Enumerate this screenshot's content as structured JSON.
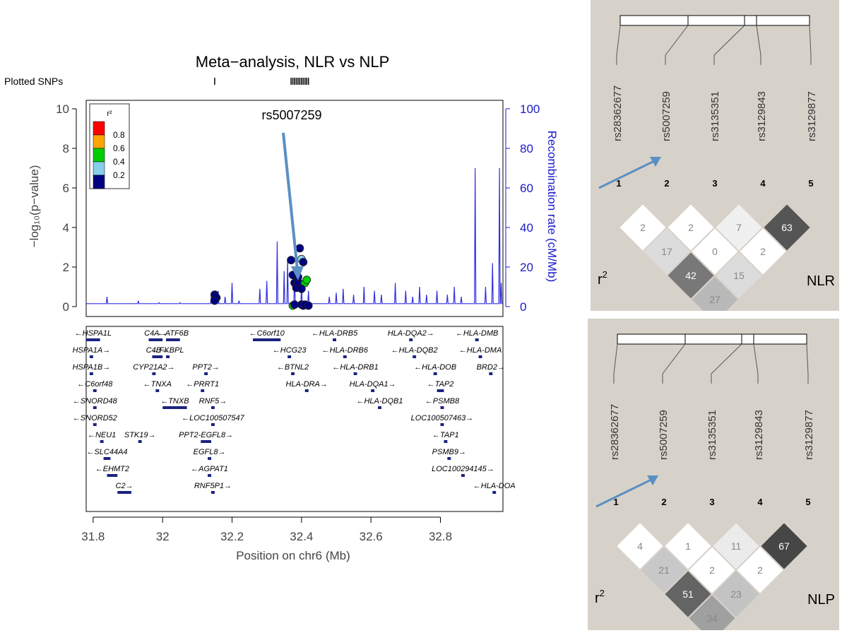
{
  "chart_data": [
    {
      "type": "scatter",
      "title": "Meta−analysis, NLR vs NLP",
      "plotted_snps_label": "Plotted SNPs",
      "xlabel": "Position on chr6 (Mb)",
      "ylabel": "−log₁₀(p−value)",
      "y2label": "Recombination rate (cM/Mb)",
      "xlim": [
        31.78,
        32.98
      ],
      "ylim": [
        0,
        10
      ],
      "y2lim": [
        0,
        100
      ],
      "x_ticks": [
        31.8,
        32.0,
        32.2,
        32.4,
        32.6,
        32.8
      ],
      "x_tick_labels": [
        "31.8",
        "32",
        "32.2",
        "32.4",
        "32.6",
        "32.8"
      ],
      "y_ticks": [
        0,
        2,
        4,
        6,
        8,
        10
      ],
      "y2_ticks": [
        0,
        20,
        40,
        60,
        80,
        100
      ],
      "legend": {
        "title": "r²",
        "placement": "top-left",
        "labels": [
          "0.8",
          "0.6",
          "0.4",
          "0.2"
        ],
        "colors": [
          "#ff0000",
          "#ffa500",
          "#00cc00",
          "#87ceeb",
          "#000080"
        ]
      },
      "annotation": "rs5007259",
      "annotation_x": 32.39,
      "annotation_y": 1.25,
      "snp_ticks": [
        32.15,
        32.37,
        32.375,
        32.38,
        32.385,
        32.39,
        32.395,
        32.4,
        32.405,
        32.41,
        32.415,
        32.42
      ],
      "points": [
        {
          "x": 32.15,
          "y": 0.6,
          "c": "#000080"
        },
        {
          "x": 32.155,
          "y": 0.45,
          "c": "#000080"
        },
        {
          "x": 32.15,
          "y": 0.3,
          "c": "#000080"
        },
        {
          "x": 32.37,
          "y": 2.35,
          "c": "#000080"
        },
        {
          "x": 32.375,
          "y": 1.6,
          "c": "#000080"
        },
        {
          "x": 32.38,
          "y": 1.2,
          "c": "#000080"
        },
        {
          "x": 32.385,
          "y": 0.95,
          "c": "#000080"
        },
        {
          "x": 32.39,
          "y": 1.25,
          "c": "#000080"
        },
        {
          "x": 32.395,
          "y": 2.95,
          "c": "#000080"
        },
        {
          "x": 32.4,
          "y": 2.4,
          "c": "#87ceeb"
        },
        {
          "x": 32.405,
          "y": 2.25,
          "c": "#000080"
        },
        {
          "x": 32.41,
          "y": 1.2,
          "c": "#00cc00"
        },
        {
          "x": 32.415,
          "y": 1.35,
          "c": "#00cc00"
        },
        {
          "x": 32.4,
          "y": 0.9,
          "c": "#000080"
        },
        {
          "x": 32.375,
          "y": 0.05,
          "c": "#00cc00"
        },
        {
          "x": 32.38,
          "y": 0.1,
          "c": "#000080"
        },
        {
          "x": 32.4,
          "y": 0.1,
          "c": "#000080"
        },
        {
          "x": 32.405,
          "y": 0.05,
          "c": "#000080"
        },
        {
          "x": 32.41,
          "y": 0.1,
          "c": "#000080"
        },
        {
          "x": 32.42,
          "y": 0.05,
          "c": "#000080"
        },
        {
          "x": 32.39,
          "y": 1.5,
          "c": "#000080"
        }
      ],
      "recomb_peaks": [
        {
          "x": 31.84,
          "y": 5
        },
        {
          "x": 31.93,
          "y": 3
        },
        {
          "x": 31.99,
          "y": 2
        },
        {
          "x": 32.05,
          "y": 2
        },
        {
          "x": 32.14,
          "y": 5
        },
        {
          "x": 32.16,
          "y": 8
        },
        {
          "x": 32.18,
          "y": 5
        },
        {
          "x": 32.2,
          "y": 12
        },
        {
          "x": 32.22,
          "y": 3
        },
        {
          "x": 32.28,
          "y": 9
        },
        {
          "x": 32.3,
          "y": 13
        },
        {
          "x": 32.33,
          "y": 33
        },
        {
          "x": 32.35,
          "y": 18
        },
        {
          "x": 32.36,
          "y": 24
        },
        {
          "x": 32.38,
          "y": 16
        },
        {
          "x": 32.4,
          "y": 10
        },
        {
          "x": 32.42,
          "y": 8
        },
        {
          "x": 32.48,
          "y": 5
        },
        {
          "x": 32.5,
          "y": 7
        },
        {
          "x": 32.52,
          "y": 9
        },
        {
          "x": 32.55,
          "y": 6
        },
        {
          "x": 32.58,
          "y": 10
        },
        {
          "x": 32.61,
          "y": 8
        },
        {
          "x": 32.63,
          "y": 6
        },
        {
          "x": 32.67,
          "y": 12
        },
        {
          "x": 32.7,
          "y": 8
        },
        {
          "x": 32.72,
          "y": 5
        },
        {
          "x": 32.74,
          "y": 10
        },
        {
          "x": 32.76,
          "y": 6
        },
        {
          "x": 32.79,
          "y": 8
        },
        {
          "x": 32.82,
          "y": 6
        },
        {
          "x": 32.84,
          "y": 10
        },
        {
          "x": 32.86,
          "y": 5
        },
        {
          "x": 32.9,
          "y": 70
        },
        {
          "x": 32.93,
          "y": 10
        },
        {
          "x": 32.95,
          "y": 22
        },
        {
          "x": 32.97,
          "y": 70
        },
        {
          "x": 32.975,
          "y": 12
        }
      ],
      "genes": [
        {
          "name": "HSPA1L",
          "x1": 31.78,
          "x2": 31.82,
          "dir": "left",
          "row": 0
        },
        {
          "name": "C4A",
          "x1": 31.96,
          "x2": 32.0,
          "dir": "right",
          "row": 0
        },
        {
          "name": "ATF6B",
          "x1": 32.01,
          "x2": 32.05,
          "dir": "left",
          "row": 0
        },
        {
          "name": "C6orf10",
          "x1": 32.26,
          "x2": 32.34,
          "dir": "left",
          "row": 0
        },
        {
          "name": "HLA-DRB5",
          "x1": 32.49,
          "x2": 32.5,
          "dir": "left",
          "row": 0
        },
        {
          "name": "HLA-DQA2",
          "x1": 32.71,
          "x2": 32.72,
          "dir": "right",
          "row": 0
        },
        {
          "name": "HLA-DMB",
          "x1": 32.9,
          "x2": 32.91,
          "dir": "left",
          "row": 0
        },
        {
          "name": "HSPA1A",
          "x1": 31.79,
          "x2": 31.8,
          "dir": "right",
          "row": 1
        },
        {
          "name": "C4B",
          "x1": 31.97,
          "x2": 32.0,
          "dir": "right",
          "row": 1
        },
        {
          "name": "FKBPL",
          "x1": 32.01,
          "x2": 32.02,
          "dir": "left",
          "row": 1
        },
        {
          "name": "HCG23",
          "x1": 32.36,
          "x2": 32.37,
          "dir": "left",
          "row": 1
        },
        {
          "name": "HLA-DRB6",
          "x1": 32.52,
          "x2": 32.53,
          "dir": "left",
          "row": 1
        },
        {
          "name": "HLA-DQB2",
          "x1": 32.72,
          "x2": 32.73,
          "dir": "left",
          "row": 1
        },
        {
          "name": "HLA-DMA",
          "x1": 32.91,
          "x2": 32.92,
          "dir": "left",
          "row": 1
        },
        {
          "name": "HSPA1B",
          "x1": 31.79,
          "x2": 31.8,
          "dir": "right",
          "row": 2
        },
        {
          "name": "CYP21A2",
          "x1": 31.97,
          "x2": 31.98,
          "dir": "right",
          "row": 2
        },
        {
          "name": "PPT2",
          "x1": 32.12,
          "x2": 32.13,
          "dir": "right",
          "row": 2
        },
        {
          "name": "BTNL2",
          "x1": 32.37,
          "x2": 32.38,
          "dir": "left",
          "row": 2
        },
        {
          "name": "HLA-DRB1",
          "x1": 32.55,
          "x2": 32.56,
          "dir": "left",
          "row": 2
        },
        {
          "name": "HLA-DOB",
          "x1": 32.78,
          "x2": 32.79,
          "dir": "left",
          "row": 2
        },
        {
          "name": "BRD2",
          "x1": 32.94,
          "x2": 32.95,
          "dir": "right",
          "row": 2
        },
        {
          "name": "C6orf48",
          "x1": 31.8,
          "x2": 31.81,
          "dir": "left",
          "row": 3
        },
        {
          "name": "TNXA",
          "x1": 31.98,
          "x2": 31.99,
          "dir": "left",
          "row": 3
        },
        {
          "name": "PRRT1",
          "x1": 32.11,
          "x2": 32.12,
          "dir": "left",
          "row": 3
        },
        {
          "name": "HLA-DRA",
          "x1": 32.41,
          "x2": 32.42,
          "dir": "right",
          "row": 3
        },
        {
          "name": "HLA-DQA1",
          "x1": 32.6,
          "x2": 32.61,
          "dir": "right",
          "row": 3
        },
        {
          "name": "TAP2",
          "x1": 32.79,
          "x2": 32.81,
          "dir": "left",
          "row": 3
        },
        {
          "name": "SNORD48",
          "x1": 31.8,
          "x2": 31.81,
          "dir": "left",
          "row": 4
        },
        {
          "name": "TNXB",
          "x1": 32.0,
          "x2": 32.07,
          "dir": "left",
          "row": 4
        },
        {
          "name": "RNF5",
          "x1": 32.14,
          "x2": 32.15,
          "dir": "right",
          "row": 4
        },
        {
          "name": "HLA-DQB1",
          "x1": 32.62,
          "x2": 32.63,
          "dir": "left",
          "row": 4
        },
        {
          "name": "PSMB8",
          "x1": 32.8,
          "x2": 32.81,
          "dir": "left",
          "row": 4
        },
        {
          "name": "SNORD52",
          "x1": 31.8,
          "x2": 31.81,
          "dir": "left",
          "row": 5
        },
        {
          "name": "LOC100507547",
          "x1": 32.14,
          "x2": 32.15,
          "dir": "left",
          "row": 5
        },
        {
          "name": "LOC100507463",
          "x1": 32.8,
          "x2": 32.81,
          "dir": "right",
          "row": 5
        },
        {
          "name": "NEU1",
          "x1": 31.82,
          "x2": 31.83,
          "dir": "left",
          "row": 6
        },
        {
          "name": "STK19",
          "x1": 31.93,
          "x2": 31.94,
          "dir": "right",
          "row": 6
        },
        {
          "name": "PPT2-EGFL8",
          "x1": 32.11,
          "x2": 32.14,
          "dir": "right",
          "row": 6
        },
        {
          "name": "TAP1",
          "x1": 32.81,
          "x2": 32.82,
          "dir": "left",
          "row": 6
        },
        {
          "name": "SLC44A4",
          "x1": 31.83,
          "x2": 31.85,
          "dir": "left",
          "row": 7
        },
        {
          "name": "EGFL8",
          "x1": 32.13,
          "x2": 32.14,
          "dir": "right",
          "row": 7
        },
        {
          "name": "PSMB9",
          "x1": 32.82,
          "x2": 32.83,
          "dir": "right",
          "row": 7
        },
        {
          "name": "EHMT2",
          "x1": 31.84,
          "x2": 31.87,
          "dir": "left",
          "row": 8
        },
        {
          "name": "AGPAT1",
          "x1": 32.13,
          "x2": 32.14,
          "dir": "left",
          "row": 8
        },
        {
          "name": "LOC100294145",
          "x1": 32.86,
          "x2": 32.87,
          "dir": "right",
          "row": 8
        },
        {
          "name": "C2",
          "x1": 31.87,
          "x2": 31.91,
          "dir": "right",
          "row": 9
        },
        {
          "name": "RNF5P1",
          "x1": 32.14,
          "x2": 32.15,
          "dir": "right",
          "row": 9
        },
        {
          "name": "HLA-DOA",
          "x1": 32.95,
          "x2": 32.96,
          "dir": "left",
          "row": 9
        }
      ]
    },
    {
      "type": "heatmap",
      "label": "NLR",
      "r2_label": "r",
      "r2_sup": "2",
      "snps": [
        "rs28362677",
        "rs5007259",
        "rs3135351",
        "rs3129843",
        "rs3129877"
      ],
      "numbers": [
        "1",
        "2",
        "3",
        "4",
        "5"
      ],
      "cells": [
        {
          "i": 1,
          "j": 2,
          "v": "2",
          "g": 255
        },
        {
          "i": 2,
          "j": 3,
          "v": "2",
          "g": 255
        },
        {
          "i": 3,
          "j": 4,
          "v": "7",
          "g": 240
        },
        {
          "i": 4,
          "j": 5,
          "v": "63",
          "g": 85
        },
        {
          "i": 1,
          "j": 3,
          "v": "17",
          "g": 220
        },
        {
          "i": 2,
          "j": 4,
          "v": "0",
          "g": 255
        },
        {
          "i": 3,
          "j": 5,
          "v": "2",
          "g": 255
        },
        {
          "i": 1,
          "j": 4,
          "v": "42",
          "g": 120
        },
        {
          "i": 2,
          "j": 5,
          "v": "15",
          "g": 220
        },
        {
          "i": 1,
          "j": 5,
          "v": "27",
          "g": 185
        }
      ]
    },
    {
      "type": "heatmap",
      "label": "NLP",
      "r2_label": "r",
      "r2_sup": "2",
      "snps": [
        "rs28362677",
        "rs5007259",
        "rs3135351",
        "rs3129843",
        "rs3129877"
      ],
      "numbers": [
        "1",
        "2",
        "3",
        "4",
        "5"
      ],
      "cells": [
        {
          "i": 1,
          "j": 2,
          "v": "4",
          "g": 255
        },
        {
          "i": 2,
          "j": 3,
          "v": "1",
          "g": 255
        },
        {
          "i": 3,
          "j": 4,
          "v": "11",
          "g": 235
        },
        {
          "i": 4,
          "j": 5,
          "v": "67",
          "g": 70
        },
        {
          "i": 1,
          "j": 3,
          "v": "21",
          "g": 200
        },
        {
          "i": 2,
          "j": 4,
          "v": "2",
          "g": 255
        },
        {
          "i": 3,
          "j": 5,
          "v": "2",
          "g": 255
        },
        {
          "i": 1,
          "j": 4,
          "v": "51",
          "g": 100
        },
        {
          "i": 2,
          "j": 5,
          "v": "23",
          "g": 195
        },
        {
          "i": 1,
          "j": 5,
          "v": "34",
          "g": 160
        }
      ]
    }
  ]
}
